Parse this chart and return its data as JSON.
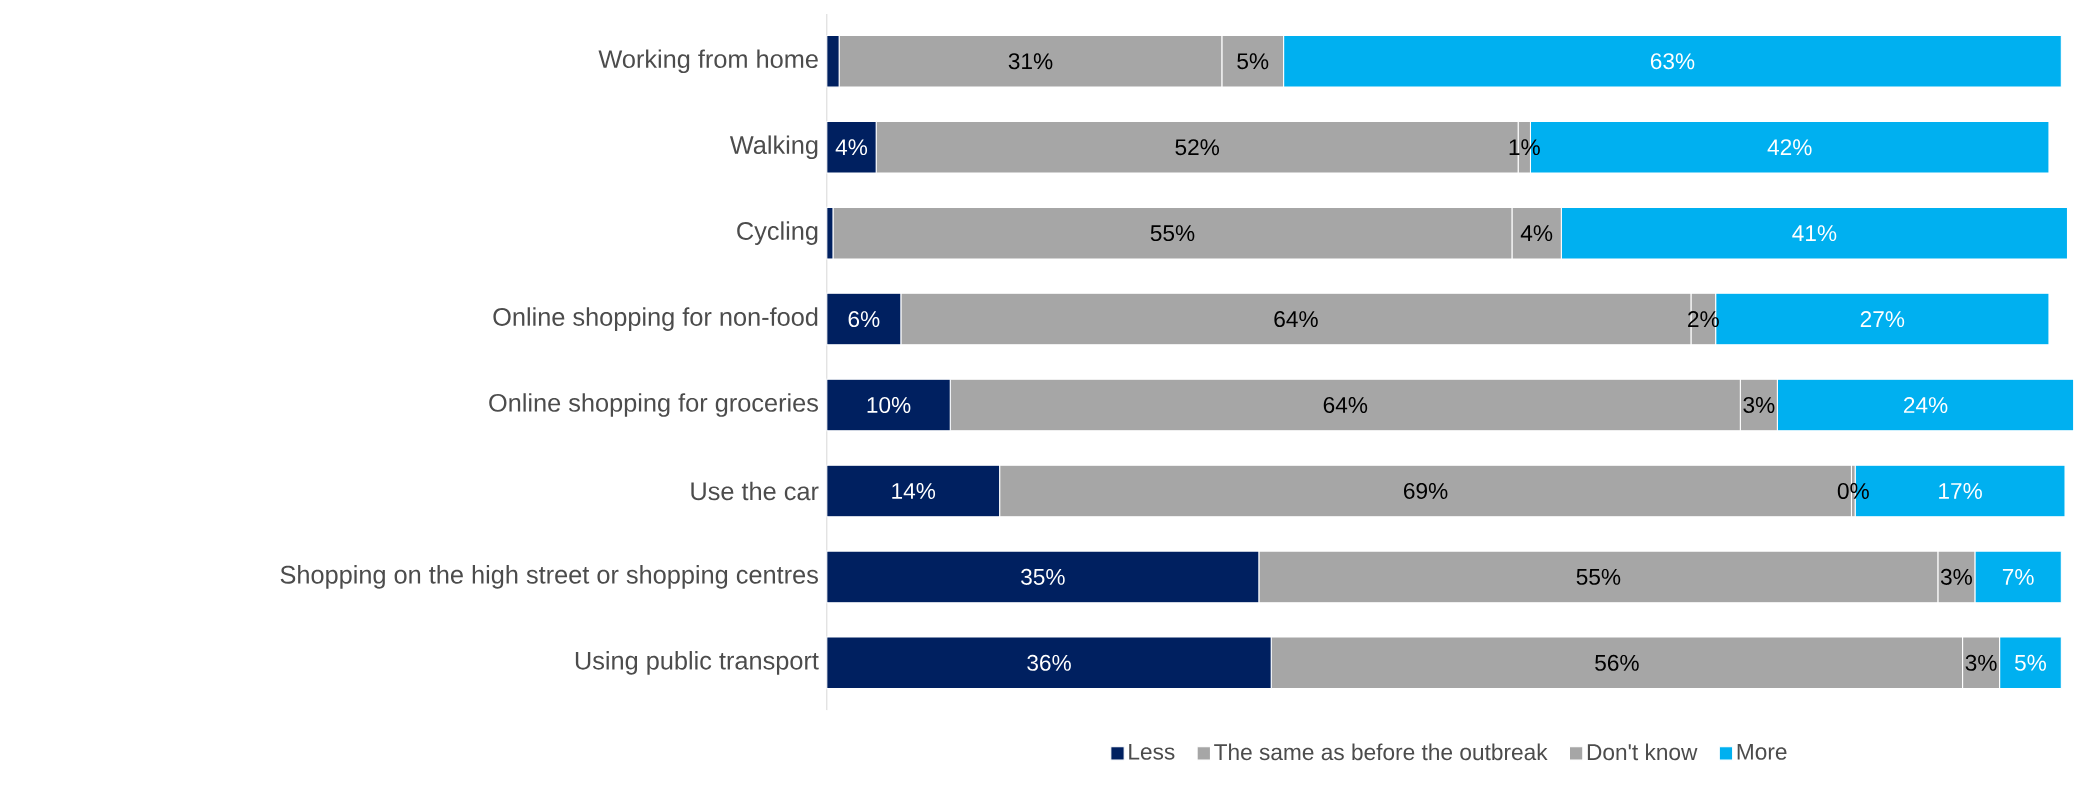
{
  "chart_data": {
    "type": "bar",
    "orientation": "horizontal",
    "stacked": true,
    "legend": "bottom",
    "categories": [
      "Working from home",
      "Walking",
      "Cycling",
      "Online shopping for non-food",
      "Online shopping for groceries",
      "Use the car",
      "Shopping on the high street or shopping centres",
      "Using public transport"
    ],
    "series": [
      {
        "name": "Less",
        "color": "#002060",
        "values": [
          1,
          4,
          0.5,
          6,
          10,
          14,
          35,
          36
        ],
        "value_labels": [
          null,
          "4%",
          null,
          "6%",
          "10%",
          "14%",
          "35%",
          "36%"
        ]
      },
      {
        "name": "The same as before the outbreak",
        "color": "#a6a6a6",
        "values": [
          31,
          52,
          55,
          64,
          64,
          69,
          55,
          56
        ],
        "value_labels": [
          "31%",
          "52%",
          "55%",
          "64%",
          "64%",
          "69%",
          "55%",
          "56%"
        ]
      },
      {
        "name": "Don't know",
        "color": "#a6a6a6",
        "values": [
          5,
          1,
          4,
          2,
          3,
          0.3,
          3,
          3
        ],
        "value_labels": [
          "5%",
          "1%",
          "4%",
          "2%",
          "3%",
          "0%",
          "3%",
          "3%"
        ]
      },
      {
        "name": "More",
        "color": "#00b0f0",
        "values": [
          63,
          42,
          41,
          27,
          24,
          17,
          7,
          5
        ],
        "value_labels": [
          "63%",
          "42%",
          "41%",
          "27%",
          "24%",
          "17%",
          "7%",
          "5%"
        ]
      }
    ]
  }
}
